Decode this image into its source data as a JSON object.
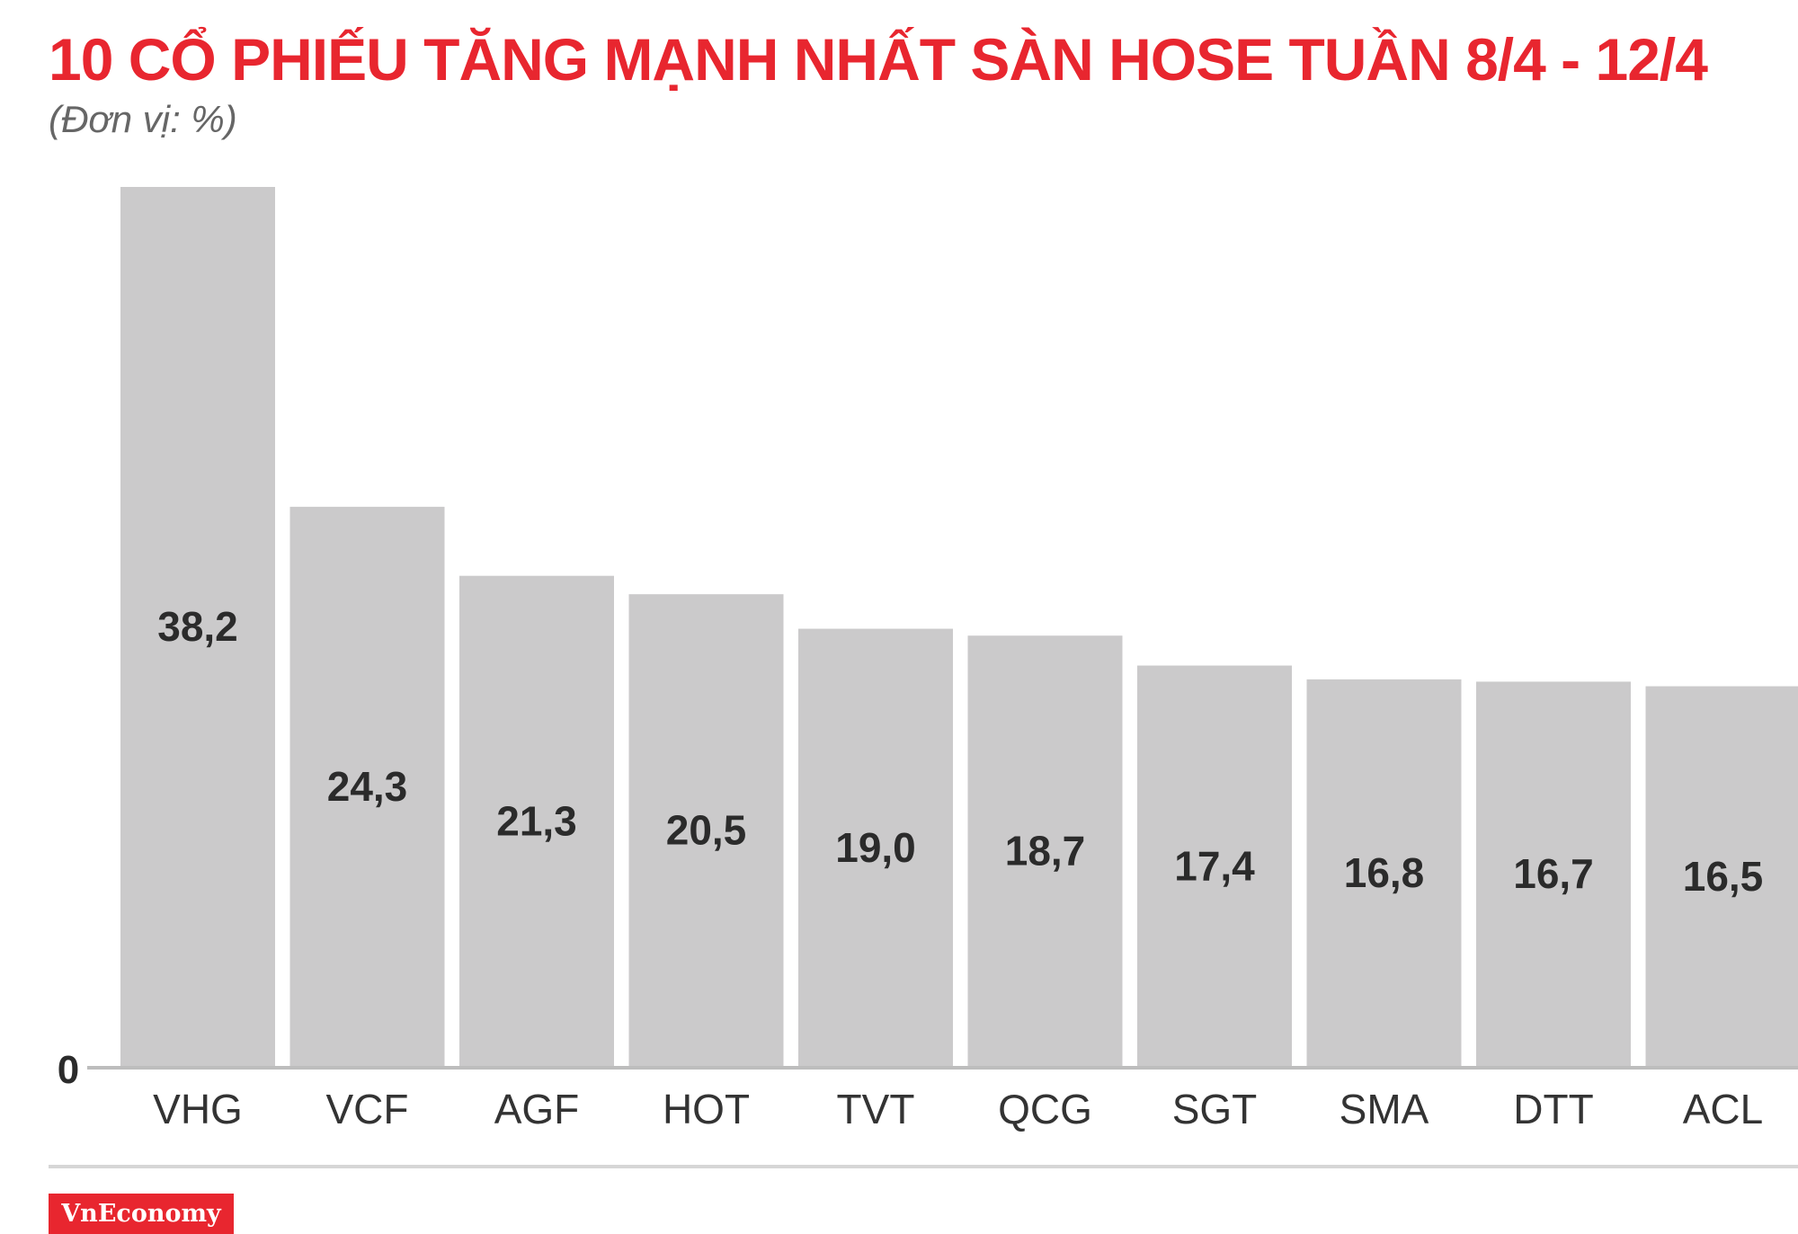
{
  "title": "10 CỔ PHIẾU TĂNG MẠNH NHẤT SÀN HOSE TUẦN 8/4 - 12/4",
  "subtitle": "(Đơn vị: %)",
  "brand": "VnEconomy",
  "colors": {
    "title": "#e8262f",
    "bar": "#cbcacb",
    "axis": "#bdbdbd",
    "brand_bg": "#e8262f"
  },
  "chart_data": {
    "type": "bar",
    "categories": [
      "VHG",
      "VCF",
      "AGF",
      "HOT",
      "TVT",
      "QCG",
      "SGT",
      "SMA",
      "DTT",
      "ACL"
    ],
    "values": [
      38.2,
      24.3,
      21.3,
      20.5,
      19.0,
      18.7,
      17.4,
      16.8,
      16.7,
      16.5
    ],
    "value_labels": [
      "38,2",
      "24,3",
      "21,3",
      "20,5",
      "19,0",
      "18,7",
      "17,4",
      "16,8",
      "16,7",
      "16,5"
    ],
    "title": "10 CỔ PHIẾU TĂNG MẠNH NHẤT SÀN HOSE TUẦN 8/4 - 12/4",
    "ylabel": "(Đơn vị: %)",
    "y_tick_labels": [
      "0"
    ],
    "ylim": [
      0,
      38.2
    ],
    "grid": false,
    "legend": "none"
  }
}
